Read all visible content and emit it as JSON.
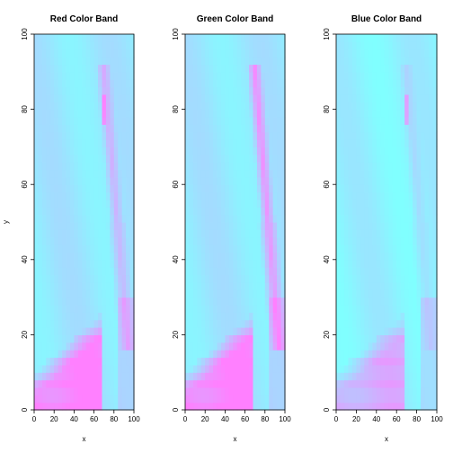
{
  "chart_data": [
    {
      "type": "heatmap",
      "title": "Red Color Band",
      "xlabel": "x",
      "ylabel": "y",
      "xlim": [
        0,
        100
      ],
      "ylim": [
        0,
        100
      ],
      "xticks": [
        0,
        20,
        40,
        60,
        80,
        100
      ],
      "yticks": [
        0,
        20,
        40,
        60,
        80,
        100
      ],
      "grid": false,
      "colorscale": [
        "#ff80ff",
        "#80ffff"
      ]
    },
    {
      "type": "heatmap",
      "title": "Green Color Band",
      "xlabel": "x",
      "ylabel": "",
      "xlim": [
        0,
        100
      ],
      "ylim": [
        0,
        100
      ],
      "xticks": [
        0,
        20,
        40,
        60,
        80,
        100
      ],
      "yticks": [
        0,
        20,
        40,
        60,
        80,
        100
      ],
      "grid": false,
      "colorscale": [
        "#ff80ff",
        "#80ffff"
      ]
    },
    {
      "type": "heatmap",
      "title": "Blue Color Band",
      "xlabel": "x",
      "ylabel": "",
      "xlim": [
        0,
        100
      ],
      "ylim": [
        0,
        100
      ],
      "xticks": [
        0,
        20,
        40,
        60,
        80,
        100
      ],
      "yticks": [
        0,
        20,
        40,
        60,
        80,
        100
      ],
      "grid": false,
      "colorscale": [
        "#ff80ff",
        "#80ffff"
      ]
    }
  ]
}
